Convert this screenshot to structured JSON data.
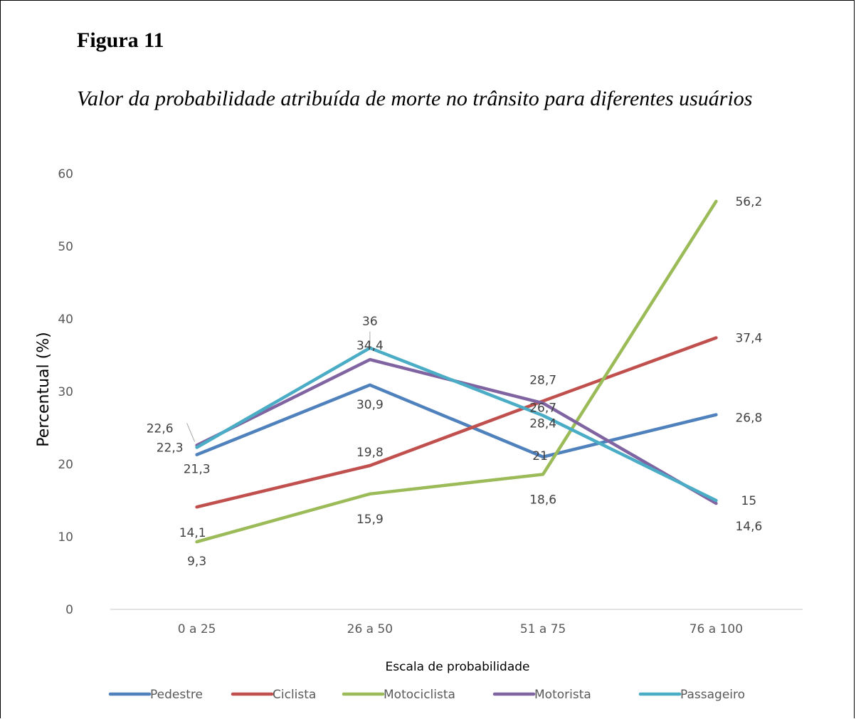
{
  "figure": {
    "label": "Figura 11",
    "title": "Valor da probabilidade atribuída de morte no trânsito para diferentes usuários"
  },
  "chart_data": {
    "type": "line",
    "categories": [
      "0 a 25",
      "26 a 50",
      "51 a 75",
      "76 a 100"
    ],
    "xlabel": "Escala de probabilidade",
    "ylabel": "Percentual (%)",
    "ylim": [
      0,
      60
    ],
    "yticks": [
      0,
      10,
      20,
      30,
      40,
      50,
      60
    ],
    "grid": false,
    "legend": "bottom",
    "series": [
      {
        "name": "Pedestre",
        "color": "#4F81BD",
        "values": [
          21.3,
          30.9,
          21,
          26.8
        ],
        "labels": [
          "21,3",
          "30,9",
          "21",
          "26,8"
        ]
      },
      {
        "name": "Ciclista",
        "color": "#C0504D",
        "values": [
          14.1,
          19.8,
          28.7,
          37.4
        ],
        "labels": [
          "14,1",
          "19,8",
          "28,7",
          "37,4"
        ]
      },
      {
        "name": "Motociclista",
        "color": "#9BBB59",
        "values": [
          9.3,
          15.9,
          18.6,
          56.2
        ],
        "labels": [
          "9,3",
          "15,9",
          "18,6",
          "56,2"
        ]
      },
      {
        "name": "Motorista",
        "color": "#8064A2",
        "values": [
          22.6,
          34.4,
          28.4,
          14.6
        ],
        "labels": [
          "22,6",
          "34,4",
          "28,4",
          "14,6"
        ]
      },
      {
        "name": "Passageiro",
        "color": "#4BACC6",
        "values": [
          22.3,
          36,
          26.7,
          15
        ],
        "labels": [
          "22,3",
          "36",
          "26,7",
          "15"
        ]
      }
    ]
  }
}
